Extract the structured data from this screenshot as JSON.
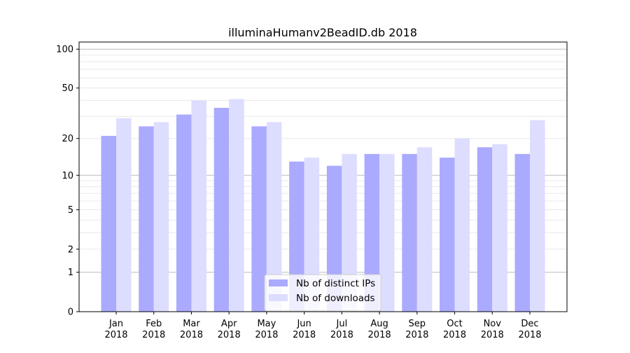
{
  "chart_data": {
    "type": "bar",
    "title": "illuminaHumanv2BeadID.db 2018",
    "xlabel": "",
    "ylabel": "",
    "yscale": "symlog (log10(1+y))",
    "ylim": [
      0,
      110
    ],
    "yticks": [
      0,
      1,
      2,
      5,
      10,
      20,
      50,
      100
    ],
    "grid": true,
    "legend_position": "bottom-center",
    "categories": [
      "Jan\n2018",
      "Feb\n2018",
      "Mar\n2018",
      "Apr\n2018",
      "May\n2018",
      "Jun\n2018",
      "Jul\n2018",
      "Aug\n2018",
      "Sep\n2018",
      "Oct\n2018",
      "Nov\n2018",
      "Dec\n2018"
    ],
    "series": [
      {
        "name": "Nb of distinct IPs",
        "color": "#aaaaff",
        "values": [
          21,
          25,
          31,
          35,
          25,
          13,
          12,
          15,
          15,
          14,
          17,
          15
        ]
      },
      {
        "name": "Nb of downloads",
        "color": "#ddddff",
        "values": [
          29,
          27,
          40,
          41,
          27,
          14,
          15,
          15,
          17,
          20,
          18,
          28
        ]
      }
    ]
  }
}
